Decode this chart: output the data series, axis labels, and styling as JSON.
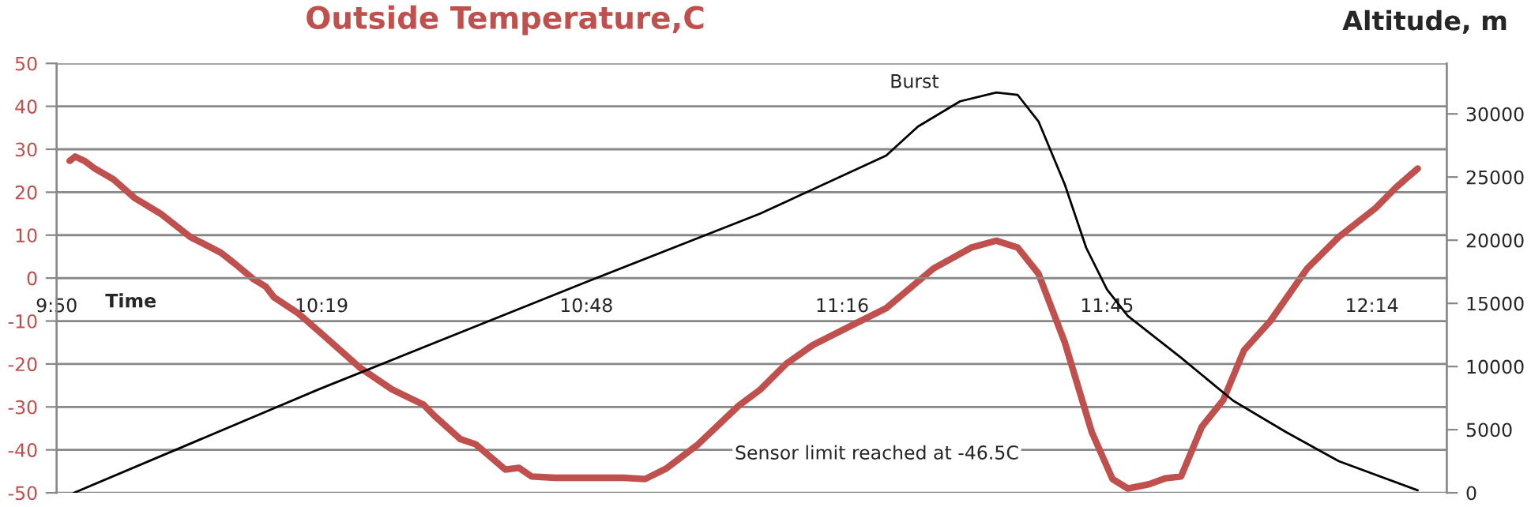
{
  "chart_data": {
    "type": "line",
    "title": "Outside Temperature,C",
    "xlabel": "Time",
    "y2label": "Altitude, m",
    "annotations": [
      "Burst",
      "Sensor limit reached at -46.5C"
    ],
    "xlim": [
      9.8333,
      12.37
    ],
    "xticks": [
      {
        "value": 9.8333,
        "label": "9:50"
      },
      {
        "value": 10.3167,
        "label": "10:19"
      },
      {
        "value": 10.8,
        "label": "10:48"
      },
      {
        "value": 11.2667,
        "label": "11:16"
      },
      {
        "value": 11.75,
        "label": "11:45"
      },
      {
        "value": 12.2333,
        "label": "12:14"
      }
    ],
    "ylim": [
      -50,
      50
    ],
    "yticks": [
      -50,
      -40,
      -30,
      -20,
      -10,
      0,
      10,
      20,
      30,
      40,
      50
    ],
    "y2lim": [
      0,
      34000
    ],
    "y2ticks": [
      0,
      5000,
      10000,
      15000,
      20000,
      25000,
      30000
    ],
    "grid": "y",
    "legend": false,
    "marker": "none",
    "line_style": "solid",
    "series": [
      {
        "color": "#c0504d",
        "x": [
          9.857,
          9.867,
          9.884,
          9.903,
          9.937,
          9.975,
          10.023,
          10.077,
          10.133,
          10.158,
          10.192,
          10.215,
          10.23,
          10.273,
          10.312,
          10.388,
          10.445,
          10.503,
          10.522,
          10.57,
          10.598,
          10.652,
          10.677,
          10.7,
          10.743,
          10.868,
          10.907,
          10.945,
          11.002,
          11.078,
          11.117,
          11.165,
          11.213,
          11.28,
          11.347,
          11.433,
          11.502,
          11.548,
          11.587,
          11.625,
          11.673,
          11.722,
          11.76,
          11.788,
          11.827,
          11.857,
          11.885,
          11.923,
          11.962,
          12.0,
          12.048,
          12.115,
          12.173,
          12.24,
          12.278,
          12.317
        ],
        "values": [
          27.3,
          28.3,
          27.3,
          25.5,
          23.0,
          18.7,
          15.0,
          9.6,
          5.9,
          3.4,
          -0.2,
          -2.0,
          -4.5,
          -8.1,
          -12.4,
          -21.0,
          -25.9,
          -29.5,
          -32.0,
          -37.5,
          -38.7,
          -44.6,
          -44.2,
          -46.2,
          -46.5,
          -46.5,
          -46.8,
          -44.4,
          -38.9,
          -29.7,
          -26.0,
          -19.9,
          -15.6,
          -11.3,
          -7.0,
          2.2,
          7.1,
          8.7,
          7.1,
          1.0,
          -15.0,
          -35.8,
          -46.8,
          -49.0,
          -48.0,
          -46.6,
          -46.2,
          -34.6,
          -28.4,
          -16.8,
          -10.0,
          2.2,
          9.6,
          16.3,
          21.2,
          25.5
        ]
      },
      {
        "color": "#000000",
        "axis": "y2",
        "x": [
          9.865,
          10.312,
          10.8,
          11.117,
          11.347,
          11.405,
          11.482,
          11.548,
          11.587,
          11.625,
          11.673,
          11.712,
          11.75,
          11.788,
          11.885,
          11.98,
          12.077,
          12.173,
          12.317
        ],
        "values": [
          0,
          8200,
          16700,
          22100,
          26700,
          29000,
          31000,
          31700,
          31500,
          29400,
          24400,
          19400,
          16100,
          14000,
          10700,
          7300,
          4800,
          2500,
          200
        ]
      }
    ]
  }
}
